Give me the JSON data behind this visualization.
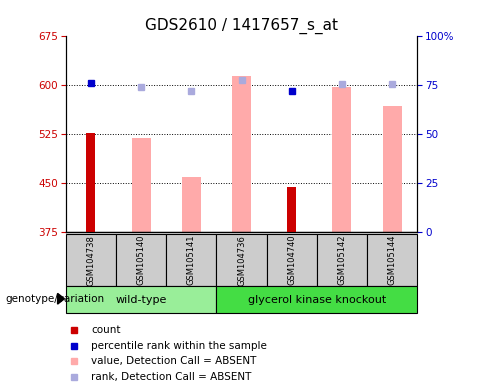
{
  "title": "GDS2610 / 1417657_s_at",
  "samples": [
    "GSM104738",
    "GSM105140",
    "GSM105141",
    "GSM104736",
    "GSM104740",
    "GSM105142",
    "GSM105144"
  ],
  "ylim_left": [
    375,
    675
  ],
  "ylim_right": [
    0,
    100
  ],
  "yticks_left": [
    375,
    450,
    525,
    600,
    675
  ],
  "yticks_right": [
    0,
    25,
    50,
    75,
    100
  ],
  "count_values": [
    527,
    null,
    null,
    null,
    445,
    null,
    null
  ],
  "rank_values": [
    76,
    null,
    null,
    null,
    72,
    null,
    null
  ],
  "absent_value_values": [
    null,
    520,
    460,
    615,
    null,
    597,
    568
  ],
  "absent_rank_values": [
    null,
    597,
    591,
    608,
    null,
    602,
    602
  ],
  "count_color": "#cc0000",
  "rank_color": "#0000cc",
  "absent_value_color": "#ffaaaa",
  "absent_rank_color": "#aaaadd",
  "bg_color": "#cccccc",
  "wt_group_color": "#99ee99",
  "ko_group_color": "#44dd44",
  "title_fontsize": 11,
  "tick_fontsize": 7.5,
  "sample_fontsize": 6,
  "group_fontsize": 8,
  "legend_fontsize": 7.5,
  "genotype_fontsize": 7.5
}
